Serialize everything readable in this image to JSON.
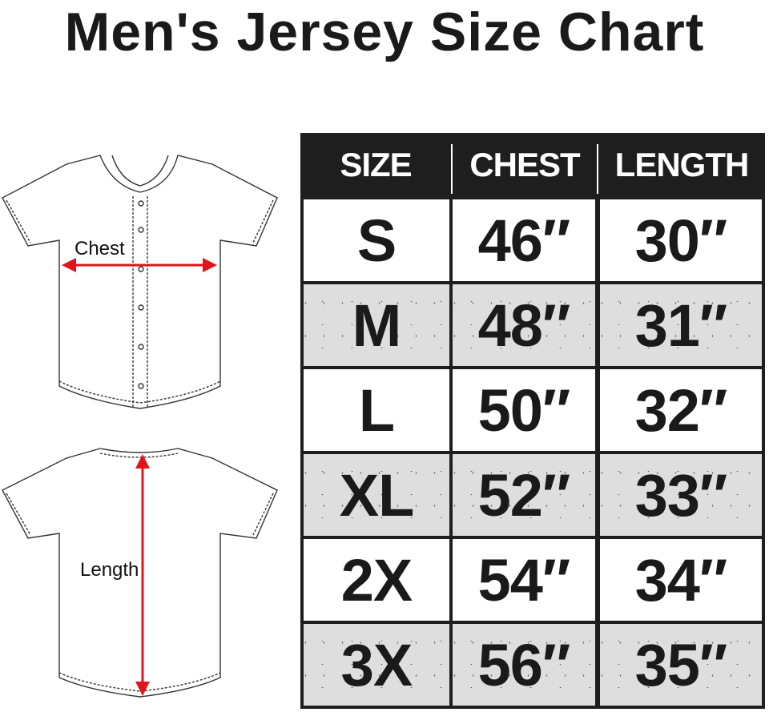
{
  "title": "Men's Jersey Size Chart",
  "diagram": {
    "front_label": "Chest",
    "back_label": "Length",
    "arrow_color": "#e0141b"
  },
  "table": {
    "headers": [
      "SIZE",
      "CHEST",
      "LENGTH"
    ],
    "rows": [
      {
        "size": "S",
        "chest": "46″",
        "length": "30″"
      },
      {
        "size": "M",
        "chest": "48″",
        "length": "31″"
      },
      {
        "size": "L",
        "chest": "50″",
        "length": "32″"
      },
      {
        "size": "XL",
        "chest": "52″",
        "length": "33″"
      },
      {
        "size": "2X",
        "chest": "54″",
        "length": "34″"
      },
      {
        "size": "3X",
        "chest": "56″",
        "length": "35″"
      }
    ]
  }
}
